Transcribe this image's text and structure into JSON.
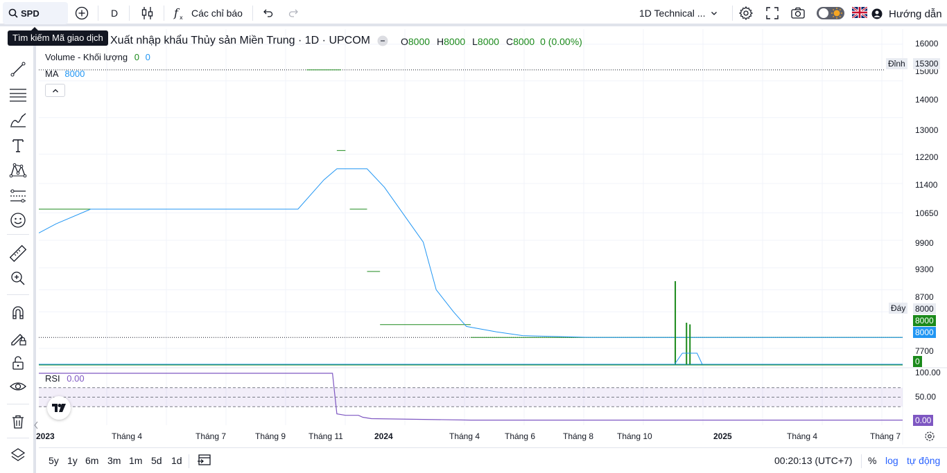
{
  "topbar": {
    "symbol": "SPD",
    "interval": "D",
    "indicators_label": "Các chỉ báo",
    "layout_name": "1D Technical ...",
    "guide_label": "Hướng dẫn"
  },
  "tooltip": "Tìm kiếm Mã giao dịch",
  "legend": {
    "title": "Xuất nhập khẩu Thủy sản Miền Trung · 1D · UPCOM",
    "o_label": "O",
    "o_value": "8000",
    "h_label": "H",
    "h_value": "8000",
    "l_label": "L",
    "l_value": "8000",
    "c_label": "C",
    "c_value": "8000",
    "change": "0 (0.00%)",
    "volume_label": "Volume - Khối lượng",
    "volume_v1": "0",
    "volume_v2": "0",
    "ma_label": "MA",
    "ma_value": "8000",
    "rsi_label": "RSI",
    "rsi_value": "0.00"
  },
  "price_axis": [
    "16000",
    "15000",
    "14000",
    "13000",
    "12200",
    "11400",
    "10650",
    "9900",
    "9300",
    "8700",
    "7700"
  ],
  "price_tags": {
    "high_label": "Đỉnh",
    "high_value": "15300",
    "low_label": "Đáy",
    "low_value": "8000",
    "last_price": "8000",
    "ma_price": "8000",
    "volume": "0"
  },
  "rsi_axis": [
    "100.00",
    "50.00"
  ],
  "rsi_tag": "0.00",
  "time_axis": [
    "2023",
    "Tháng 4",
    "Tháng 7",
    "Tháng 9",
    "Tháng 11",
    "2024",
    "Tháng 4",
    "Tháng 6",
    "Tháng 8",
    "Tháng 10",
    "2025",
    "Tháng 4",
    "Tháng 7"
  ],
  "bottombar": {
    "ranges": [
      "5y",
      "1y",
      "6m",
      "3m",
      "1m",
      "5d",
      "1d"
    ],
    "clock": "00:20:13 (UTC+7)",
    "percent": "%",
    "log": "log",
    "auto": "tự động"
  },
  "colors": {
    "price_green": "#1b8a1b",
    "ma_blue": "#2196f3",
    "rsi_purple": "#7e57c2",
    "accent_blue": "#2962ff"
  },
  "chart_data": {
    "type": "line",
    "price_range": [
      7300,
      16300
    ],
    "ma_series": {
      "name": "MA",
      "x_frac": [
        0.0,
        0.02,
        0.06,
        0.3,
        0.33,
        0.345,
        0.38,
        0.4,
        0.43,
        0.445,
        0.46,
        0.48,
        0.495,
        0.53,
        0.56,
        0.64,
        1.0
      ],
      "values": [
        10850,
        11100,
        11500,
        11500,
        12300,
        12600,
        12600,
        12100,
        11100,
        10600,
        9300,
        8700,
        8300,
        8150,
        8050,
        8000,
        8000
      ]
    },
    "close_series": {
      "name": "Close",
      "segments": [
        {
          "x0": 0.0,
          "x1": 0.3,
          "value": 11500
        },
        {
          "x0": 0.31,
          "x1": 0.35,
          "value": 15300
        },
        {
          "x0": 0.345,
          "x1": 0.355,
          "value": 13100
        },
        {
          "x0": 0.36,
          "x1": 0.38,
          "value": 11500
        },
        {
          "x0": 0.38,
          "x1": 0.395,
          "value": 9800
        },
        {
          "x0": 0.395,
          "x1": 0.5,
          "value": 8350
        },
        {
          "x0": 0.5,
          "x1": 1.0,
          "value": 8000
        }
      ]
    },
    "rsi_series": {
      "name": "RSI",
      "x_frac": [
        0.0,
        0.34,
        0.345,
        0.355,
        0.37,
        0.375,
        0.385,
        0.5,
        1.0
      ],
      "values": [
        100,
        100,
        15,
        12,
        12,
        8,
        5,
        2,
        2
      ],
      "bands": [
        70,
        50,
        30
      ]
    },
    "volume_spikes": [
      {
        "x": 0.736,
        "value": 1.0
      },
      {
        "x": 0.749,
        "value": 0.5
      },
      {
        "x": 0.753,
        "value": 0.48
      }
    ]
  }
}
